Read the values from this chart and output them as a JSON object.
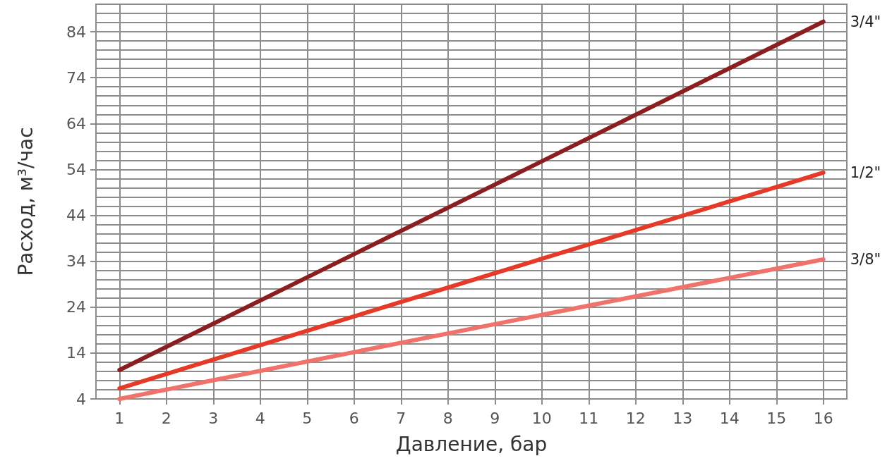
{
  "chart_data": {
    "type": "line",
    "xlabel": "Давление, бар",
    "ylabel": "Расход, м³/час",
    "xlim": [
      0.5,
      16.5
    ],
    "xticks": [
      1,
      2,
      3,
      4,
      5,
      6,
      7,
      8,
      9,
      10,
      11,
      12,
      13,
      14,
      15,
      16
    ],
    "ylim": [
      4,
      90
    ],
    "yticks": [
      4,
      14,
      24,
      34,
      44,
      54,
      64,
      74,
      84
    ],
    "grid": true,
    "marker": "none",
    "line_style": "solid",
    "series": [
      {
        "name": "3/4\"",
        "color": "#8b1e1e",
        "x": [
          1,
          9,
          16
        ],
        "values": [
          10.3,
          50.7,
          86.2
        ]
      },
      {
        "name": "1/2\"",
        "color": "#e53a27",
        "x": [
          1,
          9,
          16
        ],
        "values": [
          6.3,
          31.4,
          53.3
        ]
      },
      {
        "name": "3/8\"",
        "color": "#ef736b",
        "x": [
          1,
          9,
          16
        ],
        "values": [
          4,
          20.3,
          34.4
        ]
      }
    ]
  }
}
